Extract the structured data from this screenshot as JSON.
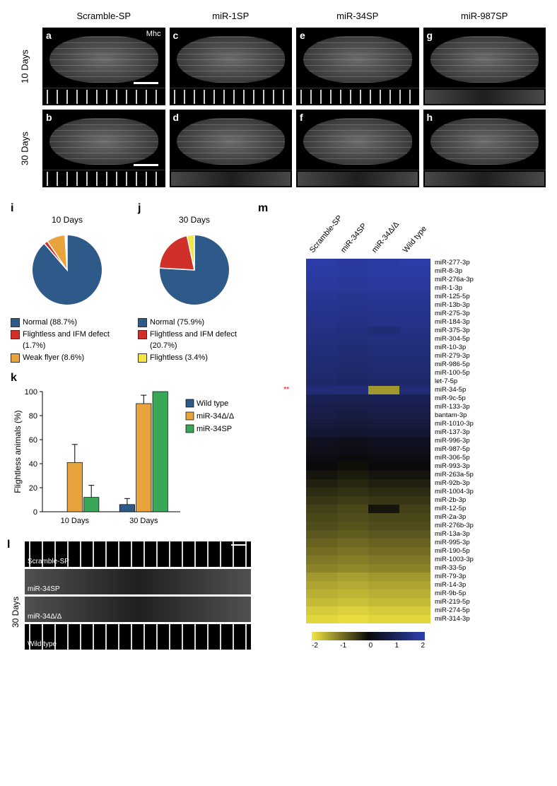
{
  "top_grid": {
    "columns": [
      "Scramble-SP",
      "miR-1SP",
      "miR-34SP",
      "miR-987SP"
    ],
    "rows": [
      "10 Days",
      "30 Days"
    ],
    "panels": [
      {
        "letter": "a",
        "col": 0,
        "row": 0,
        "mhc": "Mhc",
        "scale": true,
        "degraded": false
      },
      {
        "letter": "c",
        "col": 1,
        "row": 0,
        "degraded": false
      },
      {
        "letter": "e",
        "col": 2,
        "row": 0,
        "degraded": false
      },
      {
        "letter": "g",
        "col": 3,
        "row": 0,
        "degraded": true
      },
      {
        "letter": "b",
        "col": 0,
        "row": 1,
        "scale": true,
        "degraded": false
      },
      {
        "letter": "d",
        "col": 1,
        "row": 1,
        "degraded": true
      },
      {
        "letter": "f",
        "col": 2,
        "row": 1,
        "degraded": true
      },
      {
        "letter": "h",
        "col": 3,
        "row": 1,
        "degraded": true
      }
    ]
  },
  "pies": {
    "i": {
      "letter": "i",
      "title": "10 Days",
      "slices": [
        {
          "label": "Normal (88.7%)",
          "value": 88.7,
          "color": "#2e5a8a"
        },
        {
          "label": "Flightless and IFM defect",
          "suffix": "(1.7%)",
          "value": 1.7,
          "color": "#d0302a"
        },
        {
          "label": "Weak flyer (8.6%)",
          "value": 8.6,
          "color": "#e8a33d"
        }
      ]
    },
    "j": {
      "letter": "j",
      "title": "30 Days",
      "slices": [
        {
          "label": "Normal (75.9%)",
          "value": 75.9,
          "color": "#2e5a8a"
        },
        {
          "label": "Flightless and IFM defect",
          "suffix": "(20.7%)",
          "value": 20.7,
          "color": "#d0302a"
        },
        {
          "label": "Flightless (3.4%)",
          "value": 3.4,
          "color": "#f3e642"
        }
      ]
    }
  },
  "bar_chart": {
    "letter": "k",
    "ylabel": "Flightless animals (%)",
    "ylim": [
      0,
      100
    ],
    "ytick_step": 20,
    "categories": [
      "10 Days",
      "30 Days"
    ],
    "series": [
      {
        "name": "Wild type",
        "color": "#2e5a8a",
        "values": [
          0,
          6
        ],
        "err": [
          0,
          5
        ]
      },
      {
        "name": "miR-34Δ/Δ",
        "color": "#e8a33d",
        "values": [
          41,
          90
        ],
        "err": [
          15,
          7
        ]
      },
      {
        "name": "miR-34SP",
        "color": "#3aa658",
        "values": [
          12,
          100
        ],
        "err": [
          10,
          0
        ]
      }
    ],
    "bar_width": 0.24,
    "background_color": "#ffffff",
    "axis_color": "#000000"
  },
  "sarcomere_compare": {
    "letter": "l",
    "row_label": "30 Days",
    "strips": [
      {
        "label": "Scramble-SP",
        "pattern": "ordered",
        "scale": true
      },
      {
        "label": "miR-34SP",
        "pattern": "degraded"
      },
      {
        "label": "miR-34Δ/Δ",
        "pattern": "degraded"
      },
      {
        "label": "Wild type",
        "pattern": "ordered"
      }
    ]
  },
  "heatmap": {
    "letter": "m",
    "columns": [
      "Scramble-SP",
      "miR-34SP",
      "miR-34Δ/Δ",
      "Wild type"
    ],
    "star_row_index": 15,
    "star": "**",
    "colorscale": {
      "min": -2,
      "max": 2,
      "ticks": [
        -2,
        -1,
        0,
        1,
        2
      ],
      "stops": [
        {
          "v": -2,
          "c": "#f3e642"
        },
        {
          "v": 0,
          "c": "#0a0a0a"
        },
        {
          "v": 2,
          "c": "#2e3fb0"
        }
      ]
    },
    "rows": [
      {
        "label": "miR-277-3p",
        "v": [
          1.9,
          1.8,
          1.85,
          1.9
        ]
      },
      {
        "label": "miR-8-3p",
        "v": [
          1.85,
          1.8,
          1.85,
          1.85
        ]
      },
      {
        "label": "miR-276a-3p",
        "v": [
          1.8,
          1.75,
          1.8,
          1.8
        ]
      },
      {
        "label": "miR-1-3p",
        "v": [
          1.75,
          1.7,
          1.75,
          1.75
        ]
      },
      {
        "label": "miR-125-5p",
        "v": [
          1.65,
          1.6,
          1.65,
          1.65
        ]
      },
      {
        "label": "miR-13b-3p",
        "v": [
          1.6,
          1.55,
          1.6,
          1.6
        ]
      },
      {
        "label": "miR-275-3p",
        "v": [
          1.55,
          1.5,
          1.55,
          1.55
        ]
      },
      {
        "label": "miR-184-3p",
        "v": [
          1.5,
          1.45,
          1.5,
          1.5
        ]
      },
      {
        "label": "miR-375-3p",
        "v": [
          1.45,
          1.4,
          1.3,
          1.45
        ]
      },
      {
        "label": "miR-304-5p",
        "v": [
          1.4,
          1.35,
          1.4,
          1.4
        ]
      },
      {
        "label": "miR-10-3p",
        "v": [
          1.35,
          1.3,
          1.35,
          1.35
        ]
      },
      {
        "label": "miR-279-3p",
        "v": [
          1.3,
          1.25,
          1.3,
          1.3
        ]
      },
      {
        "label": "miR-986-5p",
        "v": [
          1.25,
          1.2,
          1.25,
          1.25
        ]
      },
      {
        "label": "miR-100-5p",
        "v": [
          1.2,
          1.15,
          1.2,
          1.2
        ]
      },
      {
        "label": "let-7-5p",
        "v": [
          1.15,
          1.1,
          1.15,
          1.15
        ]
      },
      {
        "label": "miR-34-5p",
        "v": [
          1.3,
          1.3,
          -1.3,
          1.3
        ]
      },
      {
        "label": "miR-9c-5p",
        "v": [
          0.9,
          0.85,
          0.9,
          0.9
        ]
      },
      {
        "label": "miR-133-3p",
        "v": [
          0.8,
          0.75,
          0.8,
          0.8
        ]
      },
      {
        "label": "bantam-3p",
        "v": [
          0.7,
          0.65,
          0.7,
          0.7
        ]
      },
      {
        "label": "miR-1010-3p",
        "v": [
          0.6,
          0.55,
          0.6,
          0.6
        ]
      },
      {
        "label": "miR-137-3p",
        "v": [
          0.5,
          0.45,
          0.5,
          0.5
        ]
      },
      {
        "label": "miR-996-3p",
        "v": [
          0.25,
          0.2,
          0.25,
          0.25
        ]
      },
      {
        "label": "miR-987-5p",
        "v": [
          0.2,
          0.15,
          0.2,
          0.2
        ]
      },
      {
        "label": "miR-306-5p",
        "v": [
          0.1,
          0.05,
          0.1,
          0.1
        ]
      },
      {
        "label": "miR-993-3p",
        "v": [
          0.0,
          -0.05,
          0.0,
          0.0
        ]
      },
      {
        "label": "miR-263a-5p",
        "v": [
          -0.1,
          -0.15,
          -0.1,
          -0.1
        ]
      },
      {
        "label": "miR-92b-3p",
        "v": [
          -0.2,
          -0.25,
          -0.2,
          -0.2
        ]
      },
      {
        "label": "miR-1004-3p",
        "v": [
          -0.3,
          -0.35,
          -0.3,
          -0.3
        ]
      },
      {
        "label": "miR-2b-3p",
        "v": [
          -0.4,
          -0.45,
          -0.4,
          -0.4
        ]
      },
      {
        "label": "miR-12-5p",
        "v": [
          -0.5,
          -0.55,
          -0.1,
          -0.5
        ]
      },
      {
        "label": "miR-2a-3p",
        "v": [
          -0.55,
          -0.6,
          -0.55,
          -0.55
        ]
      },
      {
        "label": "miR-276b-3p",
        "v": [
          -0.6,
          -0.65,
          -0.6,
          -0.6
        ]
      },
      {
        "label": "miR-13a-3p",
        "v": [
          -0.7,
          -0.75,
          -0.7,
          -0.7
        ]
      },
      {
        "label": "miR-995-3p",
        "v": [
          -0.8,
          -0.85,
          -0.8,
          -0.8
        ]
      },
      {
        "label": "miR-190-5p",
        "v": [
          -0.9,
          -0.95,
          -0.9,
          -0.9
        ]
      },
      {
        "label": "miR-1003-3p",
        "v": [
          -1.0,
          -1.05,
          -1.0,
          -1.0
        ]
      },
      {
        "label": "miR-33-5p",
        "v": [
          -1.1,
          -1.15,
          -1.1,
          -1.1
        ]
      },
      {
        "label": "miR-79-3p",
        "v": [
          -1.3,
          -1.35,
          -1.3,
          -1.3
        ]
      },
      {
        "label": "miR-14-3p",
        "v": [
          -1.4,
          -1.45,
          -1.4,
          -1.4
        ]
      },
      {
        "label": "miR-9b-5p",
        "v": [
          -1.5,
          -1.55,
          -1.5,
          -1.5
        ]
      },
      {
        "label": "miR-219-5p",
        "v": [
          -1.6,
          -1.65,
          -1.6,
          -1.6
        ]
      },
      {
        "label": "miR-274-5p",
        "v": [
          -1.75,
          -1.8,
          -1.75,
          -1.75
        ]
      },
      {
        "label": "miR-314-3p",
        "v": [
          -1.85,
          -1.9,
          -1.85,
          -1.85
        ]
      }
    ]
  }
}
